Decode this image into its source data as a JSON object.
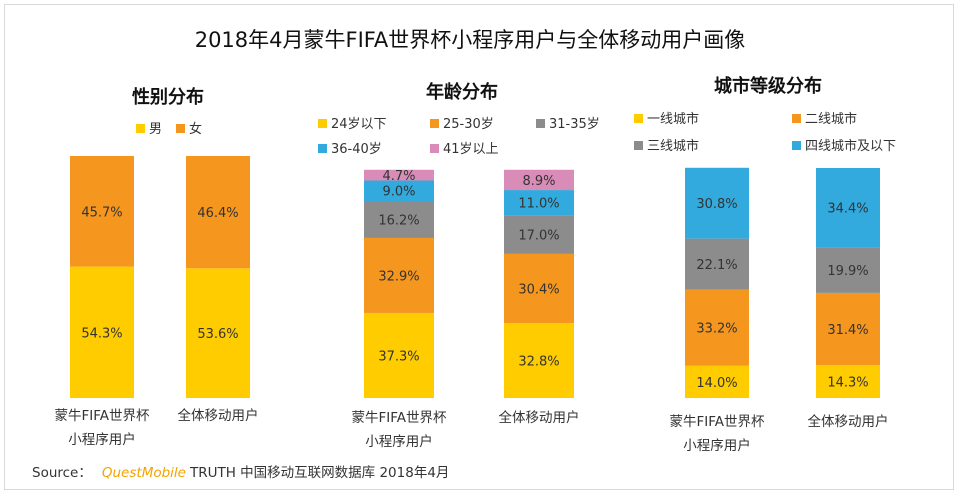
{
  "title": "2018年4月蒙牛FIFA世界杯小程序用户与全体移动用户画像",
  "source": {
    "label": "Source：",
    "brand": "QuestMobile",
    "text": "TRUTH 中国移动互联网数据库 2018年4月"
  },
  "colors": {
    "yellow": "#FFCC00",
    "orange": "#F5961E",
    "gray": "#8C8C8C",
    "blue": "#33AADD",
    "pink": "#D98CB8"
  },
  "chart_data": [
    {
      "type": "bar",
      "stacked": true,
      "percent": true,
      "title": "性别分布",
      "categories": [
        "蒙牛FIFA世界杯\n小程序用户",
        "全体移动用户"
      ],
      "series": [
        {
          "name": "男",
          "color": "yellow",
          "values": [
            54.3,
            53.6
          ]
        },
        {
          "name": "女",
          "color": "orange",
          "values": [
            45.7,
            46.4
          ]
        }
      ],
      "labels": [
        [
          "54.3%",
          "53.6%"
        ],
        [
          "45.7%",
          "46.4%"
        ]
      ],
      "ylim": [
        0,
        100
      ]
    },
    {
      "type": "bar",
      "stacked": true,
      "percent": true,
      "title": "年龄分布",
      "categories": [
        "蒙牛FIFA世界杯\n小程序用户",
        "全体移动用户"
      ],
      "series": [
        {
          "name": "24岁以下",
          "color": "yellow",
          "values": [
            37.3,
            32.8
          ]
        },
        {
          "name": "25-30岁",
          "color": "orange",
          "values": [
            32.9,
            30.4
          ]
        },
        {
          "name": "31-35岁",
          "color": "gray",
          "values": [
            16.2,
            17.0
          ]
        },
        {
          "name": "36-40岁",
          "color": "blue",
          "values": [
            9.0,
            11.0
          ]
        },
        {
          "name": "41岁以上",
          "color": "pink",
          "values": [
            4.7,
            8.9
          ]
        }
      ],
      "labels": [
        [
          "37.3%",
          "32.8%"
        ],
        [
          "32.9%",
          "30.4%"
        ],
        [
          "16.2%",
          "17.0%"
        ],
        [
          "9.0%",
          "11.0%"
        ],
        [
          "4.7%",
          "8.9%"
        ]
      ],
      "ylim": [
        0,
        100
      ]
    },
    {
      "type": "bar",
      "stacked": true,
      "percent": true,
      "title": "城市等级分布",
      "categories": [
        "蒙牛FIFA世界杯\n小程序用户",
        "全体移动用户"
      ],
      "series": [
        {
          "name": "一线城市",
          "color": "yellow",
          "values": [
            14.0,
            14.3
          ]
        },
        {
          "name": "二线城市",
          "color": "orange",
          "values": [
            33.2,
            31.4
          ]
        },
        {
          "name": "三线城市",
          "color": "gray",
          "values": [
            22.1,
            19.9
          ]
        },
        {
          "name": "四线城市及以下",
          "color": "blue",
          "values": [
            30.8,
            34.4
          ]
        }
      ],
      "labels": [
        [
          "14.0%",
          "14.3%"
        ],
        [
          "33.2%",
          "31.4%"
        ],
        [
          "22.1%",
          "19.9%"
        ],
        [
          "30.8%",
          "34.4%"
        ]
      ],
      "ylim": [
        0,
        100
      ]
    }
  ]
}
